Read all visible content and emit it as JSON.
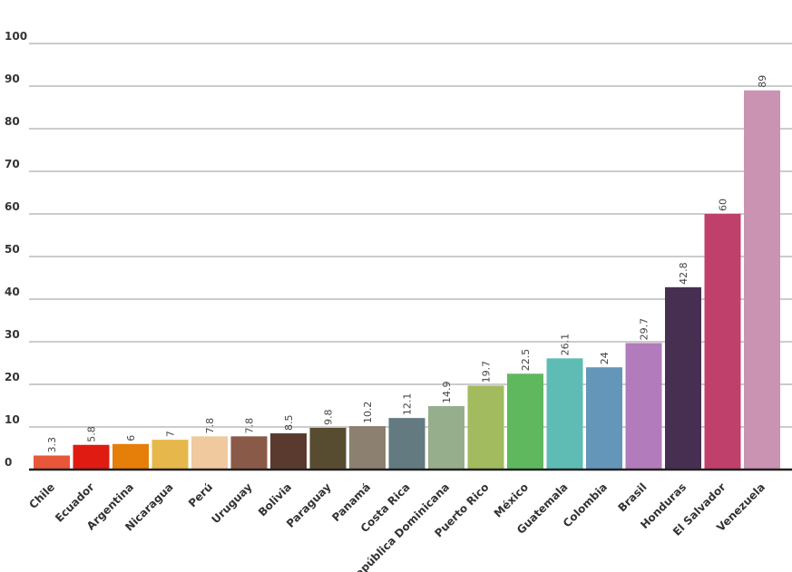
{
  "chart_data": {
    "type": "bar",
    "title": "",
    "xlabel": "",
    "ylabel": "",
    "ylim": [
      0,
      100
    ],
    "yticks": [
      0,
      10,
      20,
      30,
      40,
      50,
      60,
      70,
      80,
      90,
      100
    ],
    "grid": true,
    "categories": [
      "Chile",
      "Ecuador",
      "Argentina",
      "Nicaragua",
      "Perú",
      "Uruguay",
      "Bolivia",
      "Paraguay",
      "Panamá",
      "Costa Rica",
      "República Dominicana",
      "Puerto Rico",
      "México",
      "Guatemala",
      "Colombia",
      "Brasil",
      "Honduras",
      "El Salvador",
      "Venezuela"
    ],
    "values": [
      3.3,
      5.8,
      6,
      7,
      7.8,
      7.8,
      8.5,
      9.8,
      10.2,
      12.1,
      14.9,
      19.7,
      22.5,
      26.1,
      24,
      29.7,
      42.8,
      60,
      89
    ],
    "value_labels": [
      "3.3",
      "5.8",
      "6",
      "7",
      "7.8",
      "7.8",
      "8.5",
      "9.8",
      "10.2",
      "12.1",
      "14.9",
      "19.7",
      "22.5",
      "26.1",
      "24",
      "29.7",
      "42.8",
      "60",
      "89"
    ],
    "colors": [
      "#e8573a",
      "#e01b12",
      "#e67e0a",
      "#e6b84c",
      "#f0c99e",
      "#8a5a48",
      "#5a3a2e",
      "#574b30",
      "#8c8070",
      "#637a80",
      "#97ae8c",
      "#a1bb5e",
      "#5fb85d",
      "#5fbcb4",
      "#6496b9",
      "#b27cbc",
      "#472f52",
      "#c0406c",
      "#c993b1"
    ]
  }
}
